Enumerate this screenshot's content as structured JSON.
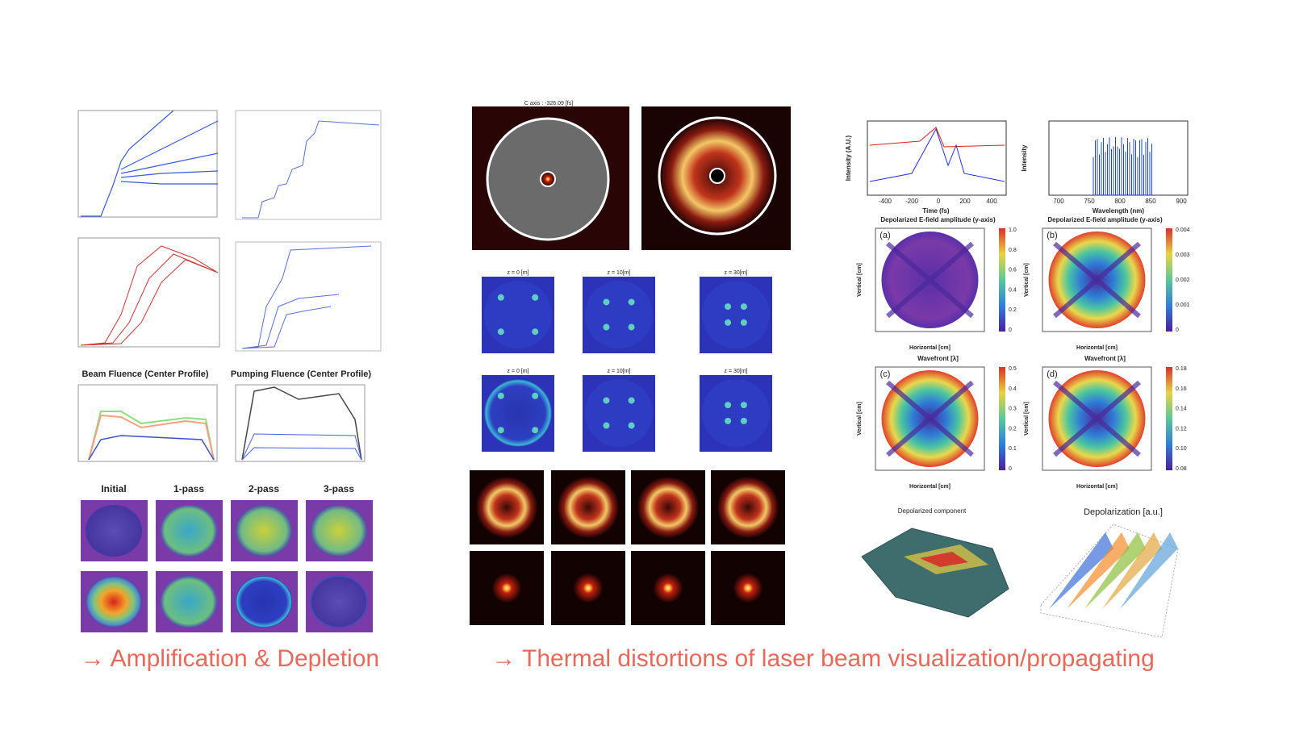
{
  "left": {
    "plot_titles": [
      "Beam Fluence (Center Profile)",
      "Pumping Fluence (Center Profile)"
    ],
    "pass_labels": [
      "Initial",
      "1-pass",
      "2-pass",
      "3-pass"
    ],
    "caption": "→ Amplification & Depletion"
  },
  "middle": {
    "top_title": "C axis : -326.09 [fs]",
    "z_labels": [
      "z = 0 [m]",
      "z = 10[m]",
      "z = 30[m]"
    ],
    "caption": "→ Thermal distortions of laser beam visualization/propagating"
  },
  "right": {
    "time_plot": {
      "xlabel": "Time (fs)",
      "ylabel": "Intensity (A.U.)",
      "xticks": [
        "-400",
        "-200",
        "0",
        "200",
        "400"
      ]
    },
    "spectrum": {
      "xlabel": "Wavelength (nm)",
      "ylabel": "Intensity",
      "xticks": [
        "700",
        "750",
        "800",
        "850",
        "900"
      ]
    },
    "axis_x": "Horizontal [cm]",
    "axis_y": "Vertical [cm]",
    "panels": [
      {
        "tag": "(a)",
        "title": "Depolarized E-field amplitude (y-axis)",
        "cbar": [
          "1.0",
          "0.8",
          "0.6",
          "0.4",
          "0.2",
          "0"
        ]
      },
      {
        "tag": "(b)",
        "title": "Depolarized E-field amplitude (y-axis)",
        "cbar": [
          "0.004",
          "0.003",
          "0.002",
          "0.001",
          "0"
        ]
      },
      {
        "tag": "(c)",
        "title": "Wavefront [λ]",
        "cbar": [
          "0.5",
          "0.4",
          "0.3",
          "0.2",
          "0.1",
          "0"
        ]
      },
      {
        "tag": "(d)",
        "title": "Wavefront [λ]",
        "cbar": [
          "0.18",
          "0.16",
          "0.14",
          "0.12",
          "0.10",
          "0.08"
        ]
      }
    ],
    "depol_titles": [
      "Depolarized component",
      "Depolarization [a.u.]"
    ]
  }
}
